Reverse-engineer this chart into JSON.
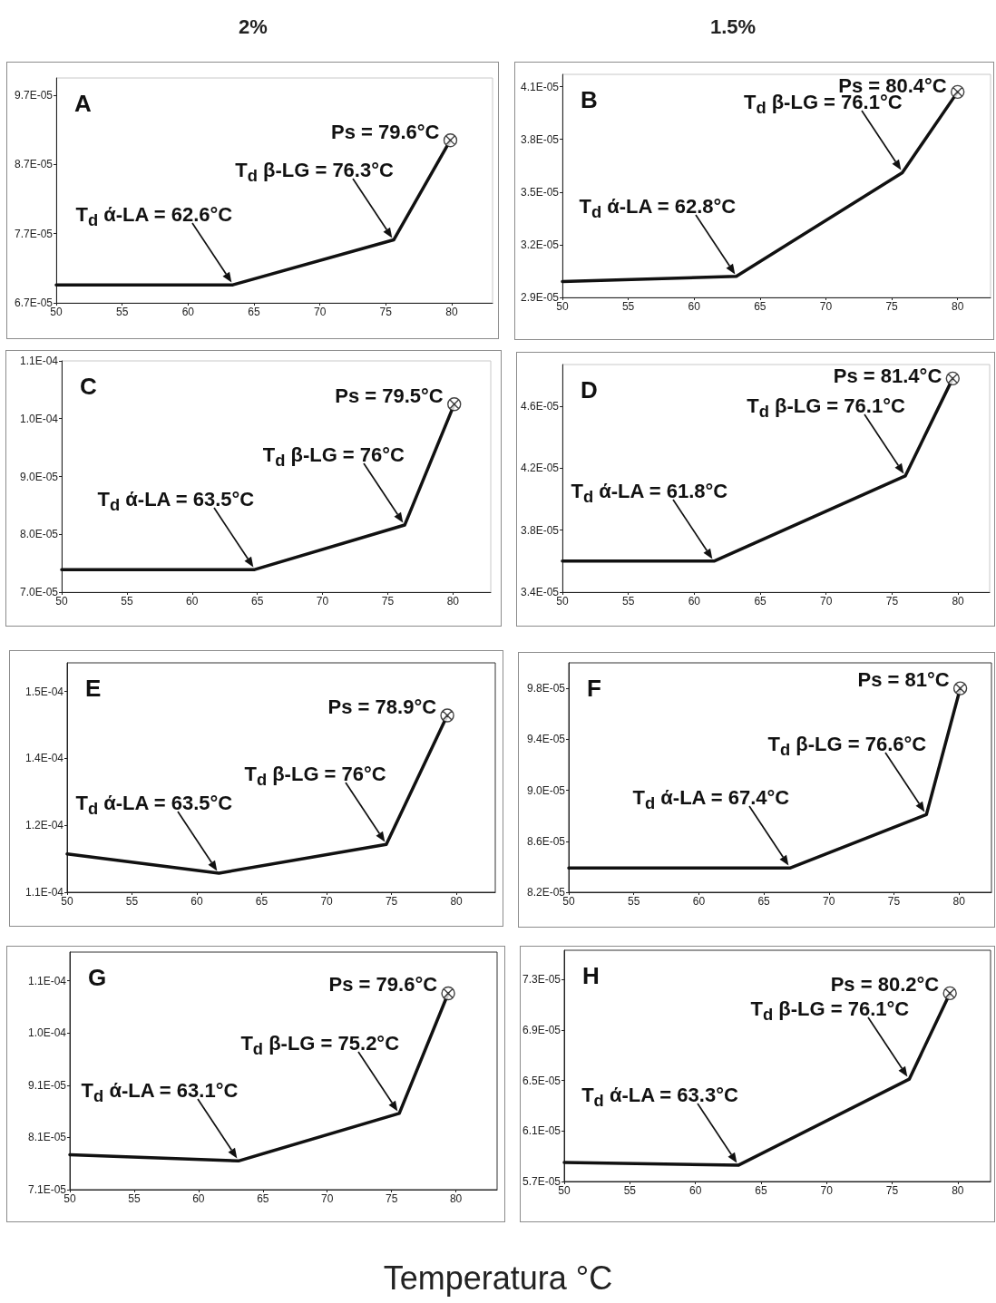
{
  "chart_data": [
    {
      "type": "line",
      "title": "2%",
      "xlim": [
        50,
        83.1
      ],
      "xticks": [
        50,
        55,
        60,
        65,
        70,
        75,
        80
      ],
      "ylim": [
        6.7e-05,
        9.95e-05
      ],
      "yticks": [
        {
          "value": 6.7e-05,
          "label": "6.7E-05"
        },
        {
          "value": 7.7e-05,
          "label": "7.7E-05"
        },
        {
          "value": 8.7e-05,
          "label": "8.7E-05"
        },
        {
          "value": 9.7e-05,
          "label": "9.7E-05"
        }
      ],
      "series": [
        {
          "color": "#111111",
          "x": [
            50,
            63.4,
            75.6,
            79.9
          ],
          "values": [
            6.96e-05,
            6.96e-05,
            7.61e-05,
            9.05e-05
          ]
        },
        {
          "type": "scatter",
          "color": "#111111",
          "marker": "cross",
          "x": [
            79.9
          ],
          "values": [
            9.05e-05
          ]
        }
      ],
      "annotations": [
        "A",
        {
          "text": "Ps = 79.6°C",
          "x": 79.9,
          "y": 9.05e-05
        },
        {
          "text": "T$_{d}$ β-LG = 76.3°C",
          "x": 75.6,
          "y": 7.61e-05
        },
        {
          "text": "T$_{d}$ ά-LA = 62.6°C",
          "x": 63.4,
          "y": 6.96e-05
        }
      ]
    },
    {
      "type": "line",
      "title": "1.5%",
      "xlim": [
        50,
        82.5
      ],
      "xticks": [
        50,
        55,
        60,
        65,
        70,
        75,
        80
      ],
      "ylim": [
        2.9e-05,
        4.17e-05
      ],
      "yticks": [
        {
          "value": 2.9e-05,
          "label": "2.9E-05"
        },
        {
          "value": 3.2e-05,
          "label": "3.2E-05"
        },
        {
          "value": 3.5e-05,
          "label": "3.5E-05"
        },
        {
          "value": 3.8e-05,
          "label": "3.8E-05"
        },
        {
          "value": 4.1e-05,
          "label": "4.1E-05"
        }
      ],
      "series": [
        {
          "color": "#111111",
          "x": [
            50,
            63.2,
            75.8,
            80.0
          ],
          "values": [
            2.99e-05,
            3.02e-05,
            3.61e-05,
            4.07e-05
          ]
        },
        {
          "type": "scatter",
          "color": "#111111",
          "marker": "cross",
          "x": [
            80.0
          ],
          "values": [
            4.07e-05
          ]
        }
      ],
      "annotations": [
        "B",
        {
          "text": "Ps = 80.4°C",
          "x": 80.0,
          "y": 4.07e-05
        },
        {
          "text": "T$_{d}$ β-LG = 76.1°C",
          "x": 75.8,
          "y": 3.61e-05
        },
        {
          "text": "T$_{d}$ ά-LA = 62.8°C",
          "x": 63.2,
          "y": 3.02e-05
        }
      ]
    },
    {
      "type": "line",
      "xlim": [
        50,
        82.9
      ],
      "xticks": [
        50,
        55,
        60,
        65,
        70,
        75,
        80
      ],
      "ylim": [
        7e-05,
        0.00011
      ],
      "yticks": [
        {
          "value": 7e-05,
          "label": "7.0E-05"
        },
        {
          "value": 8e-05,
          "label": "8.0E-05"
        },
        {
          "value": 9e-05,
          "label": "9.0E-05"
        },
        {
          "value": 0.0001,
          "label": "1.0E-04"
        },
        {
          "value": 0.00011,
          "label": "1.1E-04"
        }
      ],
      "series": [
        {
          "color": "#111111",
          "x": [
            50,
            64.8,
            76.3,
            80.1
          ],
          "values": [
            7.39e-05,
            7.39e-05,
            8.16e-05,
            0.0001025
          ]
        },
        {
          "type": "scatter",
          "color": "#111111",
          "marker": "cross",
          "x": [
            80.1
          ],
          "values": [
            0.0001025
          ]
        }
      ],
      "annotations": [
        "C",
        {
          "text": "Ps = 79.5°C",
          "x": 80.1,
          "y": 0.0001025
        },
        {
          "text": "T$_{d}$ β-LG = 76°C",
          "x": 76.3,
          "y": 8.16e-05
        },
        {
          "text": "T$_{d}$ ά-LA = 63.5°C",
          "x": 64.8,
          "y": 7.39e-05
        }
      ]
    },
    {
      "type": "line",
      "xlim": [
        50,
        82.4
      ],
      "xticks": [
        50,
        55,
        60,
        65,
        70,
        75,
        80
      ],
      "ylim": [
        3.4e-05,
        4.87e-05
      ],
      "yticks": [
        {
          "value": 3.4e-05,
          "label": "3.4E-05"
        },
        {
          "value": 3.8e-05,
          "label": "3.8E-05"
        },
        {
          "value": 4.2e-05,
          "label": "4.2E-05"
        },
        {
          "value": 4.6e-05,
          "label": "4.6E-05"
        }
      ],
      "series": [
        {
          "color": "#111111",
          "x": [
            50,
            61.5,
            76.0,
            79.6
          ],
          "values": [
            3.6e-05,
            3.6e-05,
            4.15e-05,
            4.78e-05
          ]
        },
        {
          "type": "scatter",
          "color": "#111111",
          "marker": "cross",
          "x": [
            79.6
          ],
          "values": [
            4.78e-05
          ]
        }
      ],
      "annotations": [
        "D",
        {
          "text": "Ps = 81.4°C",
          "x": 79.6,
          "y": 4.78e-05
        },
        {
          "text": "T$_{d}$ β-LG = 76.1°C",
          "x": 76.0,
          "y": 4.15e-05
        },
        {
          "text": "T$_{d}$ ά-LA = 61.8°C",
          "x": 61.5,
          "y": 3.6e-05
        }
      ]
    },
    {
      "type": "line",
      "xlim": [
        50,
        83.0
      ],
      "xticks": [
        50,
        55,
        60,
        65,
        70,
        75,
        80
      ],
      "ylim": [
        0.00011,
        0.000158
      ],
      "yticks": [
        {
          "value": 0.00011,
          "label": "1.1E-04"
        },
        {
          "value": 0.000124,
          "label": "1.2E-04"
        },
        {
          "value": 0.000138,
          "label": "1.4E-04"
        },
        {
          "value": 0.000152,
          "label": "1.5E-04"
        }
      ],
      "series": [
        {
          "color": "#111111",
          "x": [
            50,
            61.7,
            74.6,
            79.3
          ],
          "values": [
            0.000118,
            0.000114,
            0.00012,
            0.000147
          ]
        },
        {
          "type": "scatter",
          "color": "#111111",
          "marker": "cross",
          "x": [
            79.3
          ],
          "values": [
            0.000147
          ]
        }
      ],
      "annotations": [
        "E",
        {
          "text": "Ps = 78.9°C",
          "x": 79.3,
          "y": 0.000147
        },
        {
          "text": "T$_{d}$ β-LG = 76°C",
          "x": 74.6,
          "y": 0.00012
        },
        {
          "text": "T$_{d}$ ά-LA = 63.5°C",
          "x": 61.7,
          "y": 0.000114
        }
      ]
    },
    {
      "type": "line",
      "xlim": [
        50,
        82.5
      ],
      "xticks": [
        50,
        55,
        60,
        65,
        70,
        75,
        80
      ],
      "ylim": [
        8.2e-05,
        0.0001
      ],
      "yticks": [
        {
          "value": 8.2e-05,
          "label": "8.2E-05"
        },
        {
          "value": 8.6e-05,
          "label": "8.6E-05"
        },
        {
          "value": 9e-05,
          "label": "9.0E-05"
        },
        {
          "value": 9.4e-05,
          "label": "9.4E-05"
        },
        {
          "value": 9.8e-05,
          "label": "9.8E-05"
        }
      ],
      "series": [
        {
          "color": "#111111",
          "x": [
            50,
            67.0,
            77.5,
            80.1
          ],
          "values": [
            8.39e-05,
            8.39e-05,
            8.81e-05,
            9.8e-05
          ]
        },
        {
          "type": "scatter",
          "color": "#111111",
          "marker": "cross",
          "x": [
            80.1
          ],
          "values": [
            9.8e-05
          ]
        }
      ],
      "annotations": [
        "F",
        {
          "text": "Ps = 81°C",
          "x": 80.1,
          "y": 9.8e-05
        },
        {
          "text": "T$_{d}$ β-LG = 76.6°C",
          "x": 77.5,
          "y": 8.81e-05
        },
        {
          "text": "T$_{d}$ ά-LA = 67.4°C",
          "x": 67.0,
          "y": 8.39e-05
        }
      ]
    },
    {
      "type": "line",
      "xlabel": "Temperatura °C",
      "xlim": [
        50,
        83.2
      ],
      "xticks": [
        50,
        55,
        60,
        65,
        70,
        75,
        80
      ],
      "ylim": [
        7.1e-05,
        0.0001165
      ],
      "yticks": [
        {
          "value": 7.1e-05,
          "label": "7.1E-05"
        },
        {
          "value": 8.1e-05,
          "label": "8.1E-05"
        },
        {
          "value": 9.1e-05,
          "label": "9.1E-05"
        },
        {
          "value": 0.000101,
          "label": "1.0E-04"
        },
        {
          "value": 0.000111,
          "label": "1.1E-04"
        }
      ],
      "series": [
        {
          "color": "#111111",
          "x": [
            50,
            63.1,
            75.6,
            79.4
          ],
          "values": [
            7.77e-05,
            7.65e-05,
            8.56e-05,
            0.0001086
          ]
        },
        {
          "type": "scatter",
          "color": "#111111",
          "marker": "cross",
          "x": [
            79.4
          ],
          "values": [
            0.0001086
          ]
        }
      ],
      "annotations": [
        "G",
        {
          "text": "Ps = 79.6°C",
          "x": 79.4,
          "y": 0.0001086
        },
        {
          "text": "T$_{d}$ β-LG = 75.2°C",
          "x": 75.6,
          "y": 8.56e-05
        },
        {
          "text": "T$_{d}$ ά-LA = 63.1°C",
          "x": 63.1,
          "y": 7.65e-05
        }
      ]
    },
    {
      "type": "line",
      "xlim": [
        50,
        82.5
      ],
      "xticks": [
        50,
        55,
        60,
        65,
        70,
        75,
        80
      ],
      "ylim": [
        5.7e-05,
        7.53e-05
      ],
      "yticks": [
        {
          "value": 5.7e-05,
          "label": "5.7E-05"
        },
        {
          "value": 6.1e-05,
          "label": "6.1E-05"
        },
        {
          "value": 6.5e-05,
          "label": "6.5E-05"
        },
        {
          "value": 6.9e-05,
          "label": "6.9E-05"
        },
        {
          "value": 7.3e-05,
          "label": "7.3E-05"
        }
      ],
      "series": [
        {
          "color": "#111111",
          "x": [
            50,
            63.3,
            76.3,
            79.4
          ],
          "values": [
            5.85e-05,
            5.83e-05,
            6.51e-05,
            7.19e-05
          ]
        },
        {
          "type": "scatter",
          "color": "#111111",
          "marker": "cross",
          "x": [
            79.4
          ],
          "values": [
            7.19e-05
          ]
        }
      ],
      "annotations": [
        "H",
        {
          "text": "Ps = 80.2°C",
          "x": 79.4,
          "y": 7.19e-05
        },
        {
          "text": "T$_{d}$ β-LG = 76.1°C",
          "x": 76.3,
          "y": 6.51e-05
        },
        {
          "text": "T$_{d}$ ά-LA = 63.3°C",
          "x": 63.3,
          "y": 5.83e-05
        }
      ]
    }
  ]
}
